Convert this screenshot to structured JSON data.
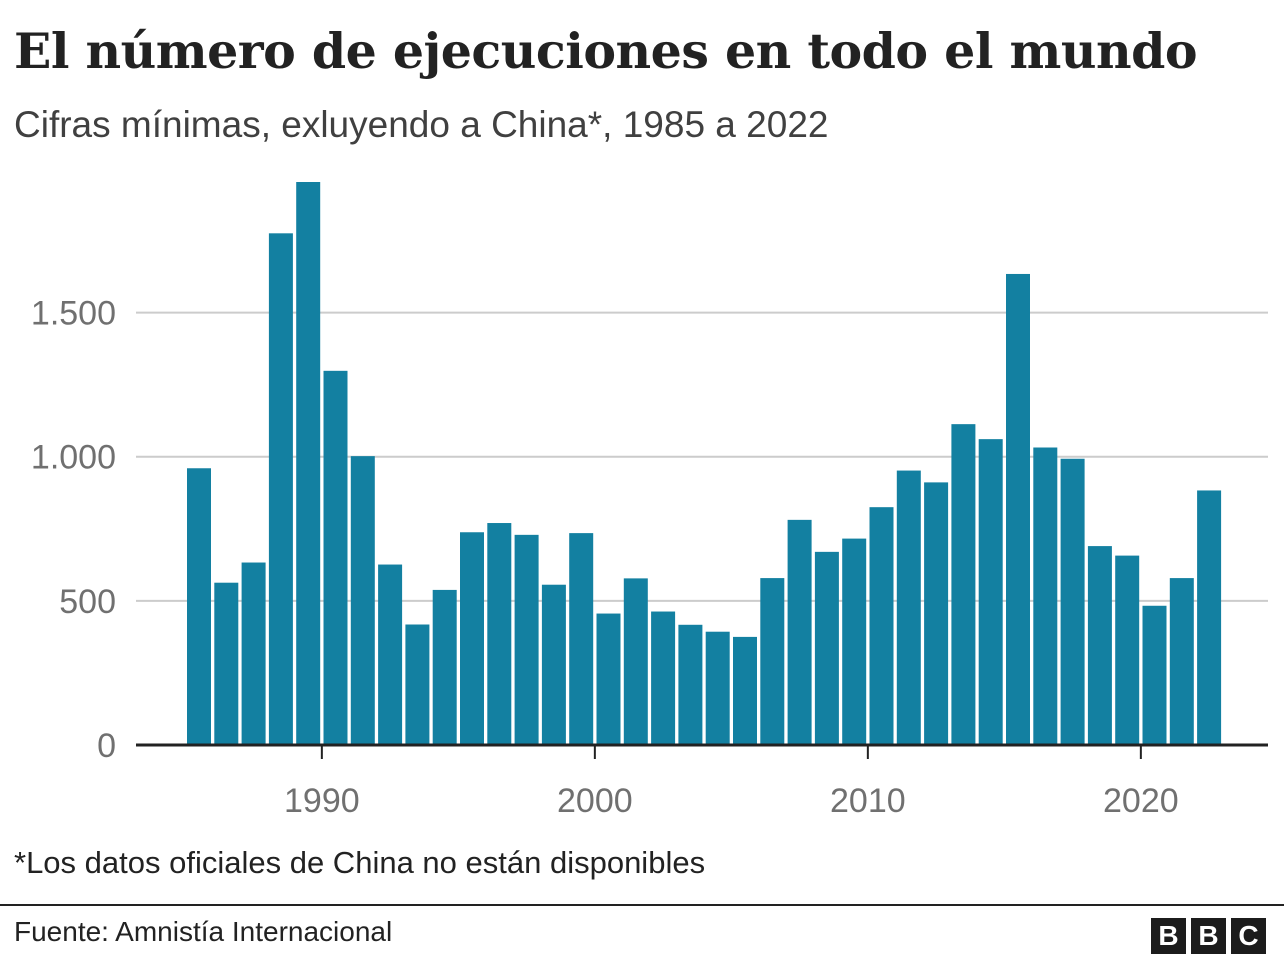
{
  "title": "El número de ejecuciones en todo el mundo",
  "subtitle": "Cifras mínimas, exluyendo a China*, 1985 a 2022",
  "note": "*Los datos oficiales de China no están disponibles",
  "source": "Fuente: Amnistía Internacional",
  "logo": [
    "B",
    "B",
    "C"
  ],
  "colors": {
    "bar": "#1380a1",
    "grid": "#cccccc",
    "axis": "#222222"
  },
  "chart_data": {
    "type": "bar",
    "x": [
      1985,
      1986,
      1987,
      1988,
      1989,
      1990,
      1991,
      1992,
      1993,
      1994,
      1995,
      1996,
      1997,
      1998,
      1999,
      2000,
      2001,
      2002,
      2003,
      2004,
      2005,
      2006,
      2007,
      2008,
      2009,
      2010,
      2011,
      2012,
      2013,
      2014,
      2015,
      2016,
      2017,
      2018,
      2019,
      2020,
      2021,
      2022
    ],
    "values": [
      960,
      563,
      633,
      1775,
      1953,
      1298,
      1002,
      626,
      418,
      538,
      738,
      770,
      729,
      556,
      735,
      456,
      578,
      463,
      417,
      393,
      375,
      579,
      781,
      670,
      716,
      825,
      952,
      911,
      1113,
      1061,
      1634,
      1032,
      993,
      690,
      657,
      483,
      579,
      883
    ],
    "xticks": [
      1990,
      2000,
      2010,
      2020
    ],
    "xtick_labels": [
      "1990",
      "2000",
      "2010",
      "2020"
    ],
    "yticks": [
      0,
      500,
      1000,
      1500
    ],
    "ytick_labels": [
      "0",
      "500",
      "1.000",
      "1.500"
    ],
    "ylim": [
      0,
      1953
    ],
    "grid": true
  }
}
